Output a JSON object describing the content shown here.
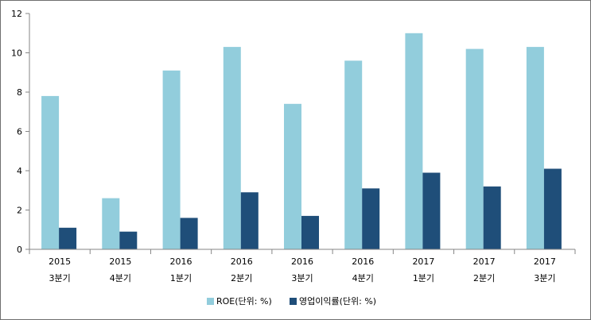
{
  "chart_data": {
    "type": "bar",
    "title": "",
    "xlabel": "",
    "ylabel": "",
    "ylim": [
      0,
      12
    ],
    "yticks": [
      0,
      2,
      4,
      6,
      8,
      10,
      12
    ],
    "grid": false,
    "legend_position": "bottom",
    "categories": [
      {
        "year": "2015",
        "quarter": "3분기"
      },
      {
        "year": "2015",
        "quarter": "4분기"
      },
      {
        "year": "2016",
        "quarter": "1분기"
      },
      {
        "year": "2016",
        "quarter": "2분기"
      },
      {
        "year": "2016",
        "quarter": "3분기"
      },
      {
        "year": "2016",
        "quarter": "4분기"
      },
      {
        "year": "2017",
        "quarter": "1분기"
      },
      {
        "year": "2017",
        "quarter": "2분기"
      },
      {
        "year": "2017",
        "quarter": "3분기"
      }
    ],
    "series": [
      {
        "name": "ROE(단위: %)",
        "color": "#92cddc",
        "values": [
          7.8,
          2.6,
          9.1,
          10.3,
          7.4,
          9.6,
          11.0,
          10.2,
          10.3
        ]
      },
      {
        "name": "영업이익률(단위: %)",
        "color": "#1f4e79",
        "values": [
          1.1,
          0.9,
          1.6,
          2.9,
          1.7,
          3.1,
          3.9,
          3.2,
          4.1
        ]
      }
    ]
  }
}
